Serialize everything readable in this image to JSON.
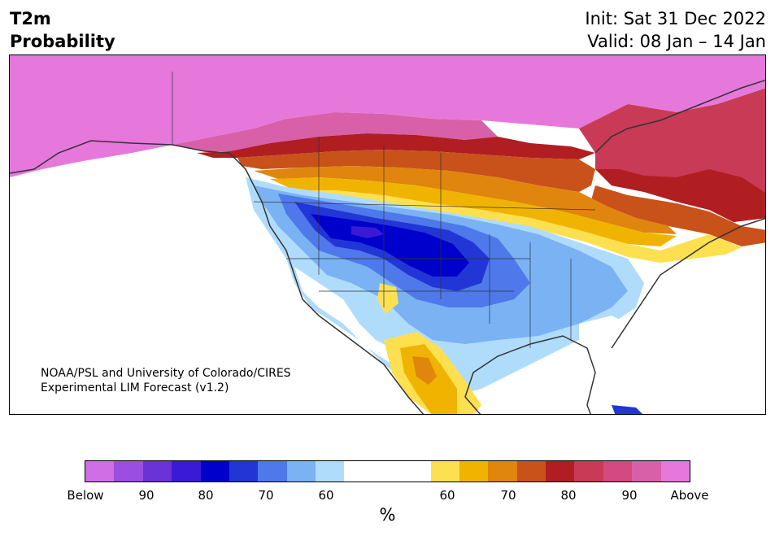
{
  "header": {
    "title_line1": "T2m",
    "title_line2": "Probability",
    "init": "Init: Sat 31 Dec 2022",
    "valid": "Valid: 08 Jan – 14 Jan"
  },
  "credit": {
    "line1": "NOAA/PSL and University of Colorado/CIRES",
    "line2": "Experimental LIM Forecast (v1.2)"
  },
  "colorbar": {
    "colors": [
      "#d06ee6",
      "#9a4fde",
      "#6a33d8",
      "#3a1ad6",
      "#0000cc",
      "#2236d6",
      "#4f78ea",
      "#7ab2f4",
      "#b0dcfc",
      "#ffffff",
      "#fde050",
      "#f0b400",
      "#e0850e",
      "#c8521a",
      "#b01e22",
      "#c83a55",
      "#d44a7e",
      "#d860a8",
      "#e678dc"
    ],
    "labels": [
      "Below",
      "90",
      "80",
      "70",
      "60",
      "60",
      "70",
      "80",
      "90",
      "Above"
    ],
    "unit": "%"
  },
  "map": {
    "colors": {
      "ocean": "#ffffff",
      "outline": "#333333",
      "above_max": "#e678dc",
      "cold_core": "#0000cc"
    }
  }
}
